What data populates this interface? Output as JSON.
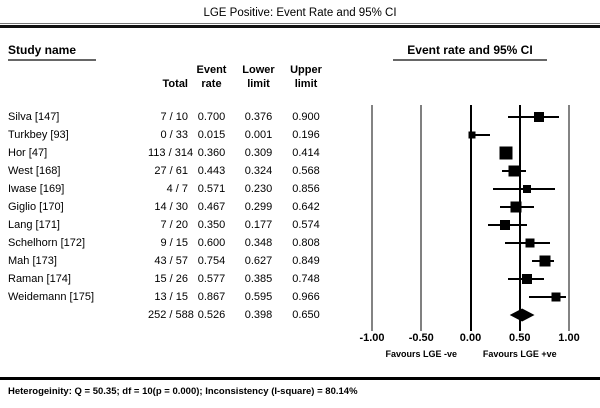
{
  "title": "LGE Positive: Event Rate and 95% CI",
  "table": {
    "left_header": "Study name",
    "right_header": "Event rate and 95% CI",
    "col_headers": {
      "total": "Total",
      "event": [
        "Event",
        "rate"
      ],
      "lower": [
        "Lower",
        "limit"
      ],
      "upper": [
        "Upper",
        "limit"
      ]
    }
  },
  "chart_data": {
    "type": "scatter",
    "variant": "forest-plot",
    "title": "LGE Positive: Event Rate and 95% CI",
    "xlim": [
      -1,
      1
    ],
    "x_ticks": [
      "-1.00",
      "-0.50",
      "0.00",
      "0.50",
      "1.00"
    ],
    "x_tick_values": [
      -1,
      -0.5,
      0,
      0.5,
      1
    ],
    "favours_left": "Favours LGE -ve",
    "favours_right": "Favours LGE +ve",
    "grid": true,
    "studies": [
      {
        "name": "Silva [147]",
        "total": "7 / 10",
        "rate": "0.700",
        "lower": "0.376",
        "upper": "0.900",
        "size": 10
      },
      {
        "name": "Turkbey [93]",
        "total": "0 / 33",
        "rate": "0.015",
        "lower": "0.001",
        "upper": "0.196",
        "size": 7
      },
      {
        "name": "Hor [47]",
        "total": "113 / 314",
        "rate": "0.360",
        "lower": "0.309",
        "upper": "0.414",
        "size": 13
      },
      {
        "name": "West [168]",
        "total": "27 / 61",
        "rate": "0.443",
        "lower": "0.324",
        "upper": "0.568",
        "size": 11
      },
      {
        "name": "Iwase [169]",
        "total": "4 / 7",
        "rate": "0.571",
        "lower": "0.230",
        "upper": "0.856",
        "size": 8
      },
      {
        "name": "Giglio [170]",
        "total": "14 / 30",
        "rate": "0.467",
        "lower": "0.299",
        "upper": "0.642",
        "size": 11
      },
      {
        "name": "Lang [171]",
        "total": "7 / 20",
        "rate": "0.350",
        "lower": "0.177",
        "upper": "0.574",
        "size": 10
      },
      {
        "name": "Schelhorn [172]",
        "total": "9 / 15",
        "rate": "0.600",
        "lower": "0.348",
        "upper": "0.808",
        "size": 9
      },
      {
        "name": "Mah [173]",
        "total": "43 / 57",
        "rate": "0.754",
        "lower": "0.627",
        "upper": "0.849",
        "size": 11
      },
      {
        "name": "Raman [174]",
        "total": "15 / 26",
        "rate": "0.577",
        "lower": "0.385",
        "upper": "0.748",
        "size": 10
      },
      {
        "name": "Weidemann [175]",
        "total": "13 / 15",
        "rate": "0.867",
        "lower": "0.595",
        "upper": "0.966",
        "size": 9
      }
    ],
    "summary": {
      "name": "",
      "total": "252 / 588",
      "rate": "0.526",
      "lower": "0.398",
      "upper": "0.650",
      "diamond_height": 13
    }
  },
  "footer": "Heterogeinity: Q = 50.35; df = 10(p = 0.000); Inconsistency (I-square) = 80.14%",
  "colors": {
    "marker": "#000000",
    "ci_line": "#000000",
    "grid_outer": "#838383",
    "grid_inner": "#000000",
    "underline": "#666666",
    "rule": "#111111"
  }
}
